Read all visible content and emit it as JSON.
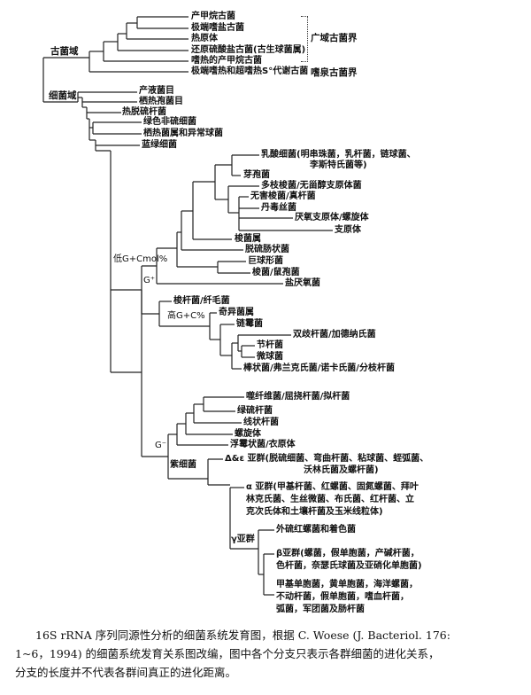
{
  "archaea": {
    "domain_label": "古菌域",
    "leaves": [
      "产甲烷古菌",
      "极端嗜盐古菌",
      "热原体",
      "还原硫酸盐古菌(古生球菌属)",
      "嗜热的产甲烷古菌",
      "极端嗜热和超嗜热S°代谢古菌"
    ],
    "kingdoms": [
      "广域古菌界",
      "嗜泉古菌界"
    ]
  },
  "bacteria": {
    "domain_label": "细菌域",
    "basal_leaves": [
      "产液菌目",
      "栖热孢菌目",
      "热脱硫杆菌",
      "绿色非硫细菌",
      "栖热菌属和异常球菌",
      "蓝绿细菌"
    ],
    "gram_positive": {
      "label": "G⁺",
      "low_gc_label": "低G+Cmol%",
      "low_gc_leaves": [
        "乳酸细菌(明串珠菌，乳杆菌，链球菌、",
        "李斯特氏菌等)",
        "芽孢菌",
        "多枝梭菌/无甾醇支原体菌",
        "无害梭菌/真杆菌",
        "丹毒丝菌",
        "厌氧支原体/螺旋体",
        "支原体",
        "梭菌属",
        "脱硫肠状菌",
        "巨球形菌",
        "梭菌/鼠孢菌",
        "盐厌氧菌"
      ],
      "other_leaf": "梭杆菌/纤毛菌",
      "high_gc_label": "高G+C%",
      "high_gc_leaves": [
        "奇异菌属",
        "链霉菌",
        "双歧杆菌/加德纳氏菌",
        "节杆菌",
        "微球菌",
        "棒状菌/弗兰克氏菌/诺卡氏菌/分枝杆菌"
      ]
    },
    "gram_negative": {
      "label": "G⁻",
      "leaves": [
        "噬纤维菌/屈挠杆菌/拟杆菌",
        "绿硫杆菌",
        "线状杆菌",
        "螺旋体",
        "浮霉状菌/衣原体"
      ],
      "purple_label": "紫细菌",
      "delta_epsilon": [
        "Δ&ε 亚群(脱硫细菌、弯曲杆菌、粘球菌、蛭弧菌、",
        "沃林氏菌及螺杆菌)"
      ],
      "alpha": [
        "α 亚群(甲基杆菌、红螺菌、固氮螺菌、拜叶",
        "林克氏菌、生丝微菌、布氏菌、红杆菌、立",
        "克次氏体和土壤杆菌及玉米线粒体)"
      ],
      "gamma_label": "γ亚群",
      "gamma_leaf": "外硫红螺菌和着色菌",
      "beta": [
        "β亚群(螺菌，假单胞菌，产碱杆菌，",
        "色杆菌，奈瑟氏球菌及亚硝化单胞菌)"
      ],
      "gamma_rest": [
        "甲基单胞菌，黄单胞菌，海洋螺菌，",
        "不动杆菌，假单胞菌，嗜血杆菌，",
        "弧菌，军团菌及肠杆菌"
      ]
    }
  },
  "caption": [
    "16S rRNA 序列同源性分析的细菌系统发育图，根据 C.  Woese (J.  Bacteriol.  176:",
    "1~6，1994) 的细菌系统发育关系图改编，图中各个分支只表示各群细菌的进化关系，",
    "分支的长度并不代表各群间真正的进化距离。"
  ]
}
